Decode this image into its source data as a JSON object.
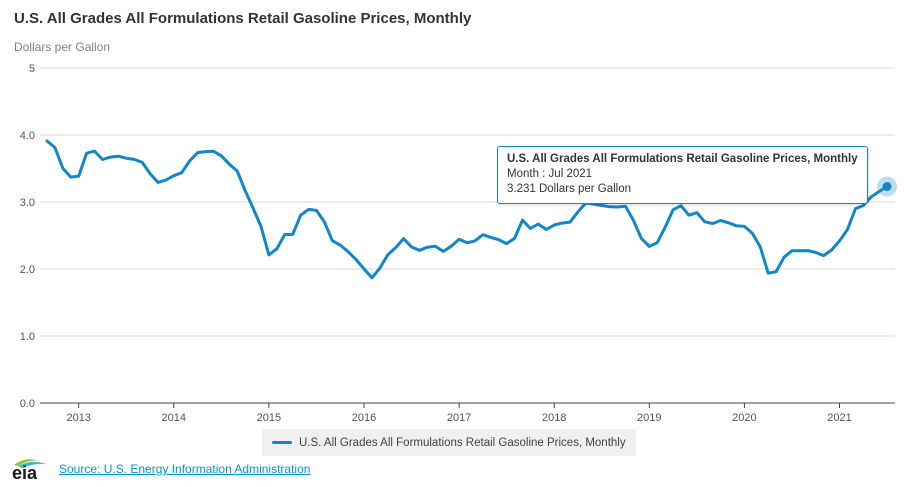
{
  "title": "U.S. All Grades All Formulations Retail Gasoline Prices, Monthly",
  "subtitle": "Dollars per Gallon",
  "tooltip": {
    "title": "U.S. All Grades All Formulations Retail Gasoline Prices, Monthly",
    "month_line": "Month : Jul 2021",
    "value_line": "3.231 Dollars per Gallon"
  },
  "legend": {
    "label": "U.S. All Grades All Formulations Retail Gasoline Prices, Monthly"
  },
  "footer": {
    "logo_text": "eia",
    "source_label": "Source: U.S. Energy Information Administration"
  },
  "colors": {
    "line": "#1187c9",
    "grid": "#d9d9d9",
    "axis": "#444444",
    "tick_text": "#555555",
    "link": "#0096d7",
    "legend_bg": "#f0f0f0",
    "logo_green": "#8cc63e",
    "logo_blue": "#3fb4d8"
  },
  "chart_data": {
    "type": "line",
    "title": "U.S. All Grades All Formulations Retail Gasoline Prices, Monthly",
    "xlabel": "",
    "ylabel": "Dollars per Gallon",
    "frequency": "monthly",
    "start_month": "2012-09",
    "end_month": "2021-07",
    "ylim": [
      0,
      5
    ],
    "grid": "horizontal",
    "legend_position": "bottom",
    "y_axis": {
      "ticks": [
        {
          "value": 5,
          "label": "5"
        },
        {
          "value": 4,
          "label": "4.0"
        },
        {
          "value": 3,
          "label": "3.0"
        },
        {
          "value": 2,
          "label": "2.0"
        },
        {
          "value": 1,
          "label": "1.0"
        },
        {
          "value": 0,
          "label": "0.0"
        }
      ]
    },
    "x_axis": {
      "ticks": [
        "2013",
        "2014",
        "2015",
        "2016",
        "2017",
        "2018",
        "2019",
        "2020",
        "2021"
      ]
    },
    "series": [
      {
        "name": "U.S. All Grades All Formulations Retail Gasoline Prices, Monthly",
        "color": "#1187c9",
        "values": [
          3.91,
          3.814,
          3.501,
          3.372,
          3.386,
          3.729,
          3.76,
          3.634,
          3.67,
          3.684,
          3.654,
          3.636,
          3.593,
          3.426,
          3.292,
          3.327,
          3.392,
          3.438,
          3.613,
          3.738,
          3.752,
          3.758,
          3.69,
          3.564,
          3.462,
          3.171,
          2.911,
          2.634,
          2.21,
          2.301,
          2.515,
          2.516,
          2.802,
          2.89,
          2.875,
          2.703,
          2.422,
          2.358,
          2.258,
          2.141,
          2.002,
          1.868,
          2.01,
          2.213,
          2.32,
          2.453,
          2.329,
          2.277,
          2.326,
          2.34,
          2.263,
          2.34,
          2.443,
          2.391,
          2.42,
          2.512,
          2.471,
          2.437,
          2.379,
          2.456,
          2.73,
          2.604,
          2.672,
          2.589,
          2.656,
          2.685,
          2.7,
          2.853,
          2.987,
          2.969,
          2.948,
          2.928,
          2.925,
          2.937,
          2.727,
          2.457,
          2.338,
          2.392,
          2.621,
          2.883,
          2.945,
          2.803,
          2.84,
          2.705,
          2.679,
          2.724,
          2.69,
          2.645,
          2.636,
          2.533,
          2.329,
          1.938,
          1.961,
          2.174,
          2.272,
          2.272,
          2.274,
          2.248,
          2.2,
          2.284,
          2.42,
          2.587,
          2.898,
          2.948,
          3.076,
          3.157,
          3.231
        ]
      }
    ],
    "highlight_point": {
      "label": "Jul 2021",
      "value": 3.231
    }
  }
}
